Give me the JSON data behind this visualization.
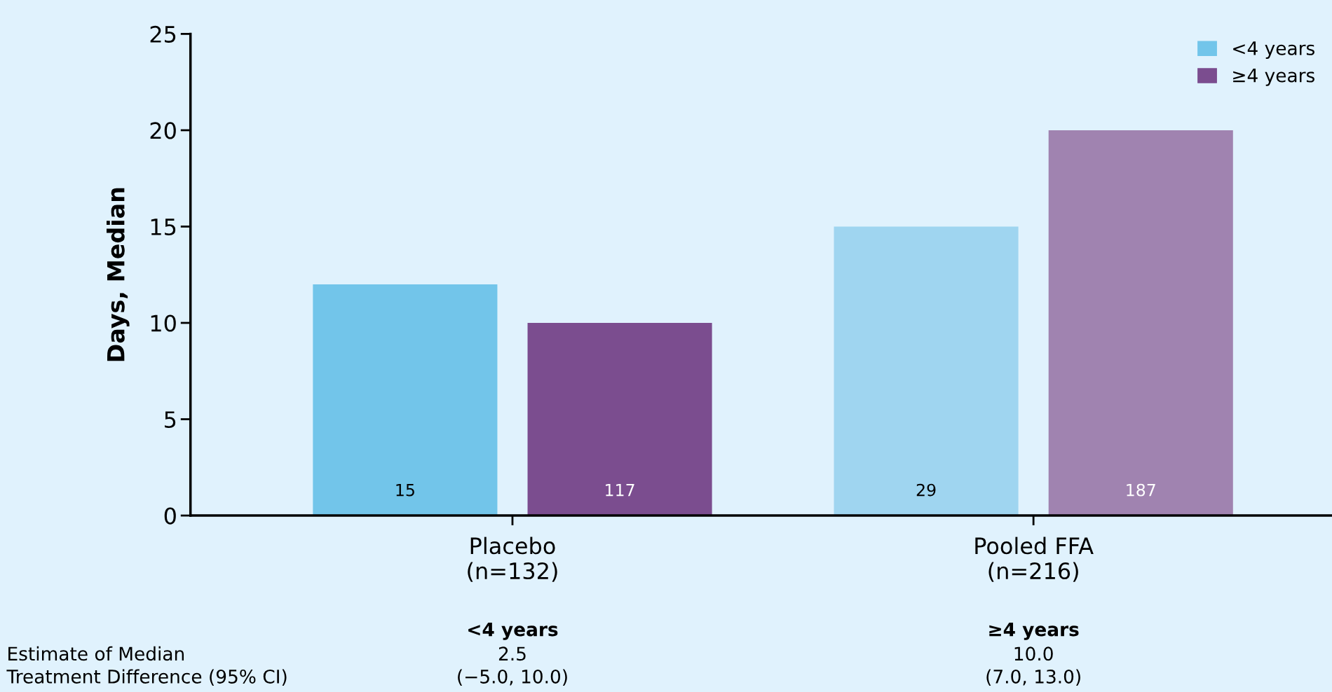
{
  "chart_data": {
    "type": "bar",
    "ylabel": "Days, Median",
    "categories": [
      "Placebo\n(n=132)",
      "Pooled FFA\n(n=216)"
    ],
    "series": [
      {
        "name": "<4 years",
        "color": "#72c5ea",
        "colors": [
          "#72c5ea",
          "#9fd5f0"
        ],
        "values": [
          12,
          15
        ]
      },
      {
        "name": "≥4 years",
        "color": "#7b4d8f",
        "colors": [
          "#7b4d8f",
          "#a083b0"
        ],
        "values": [
          10,
          20
        ]
      }
    ],
    "ylim": [
      0,
      25
    ],
    "yticks": [
      0,
      5,
      10,
      15,
      20,
      25
    ],
    "grid": false,
    "legend": "top right",
    "annotations": [
      "15",
      "29",
      "117",
      "187",
      "<4 years",
      "≥4 years",
      "Estimate of Median",
      "Treatment Difference (95% CI)",
      "2.5",
      "(−5.0, 10.0)",
      "10.0",
      "(7.0, 13.0)"
    ]
  }
}
